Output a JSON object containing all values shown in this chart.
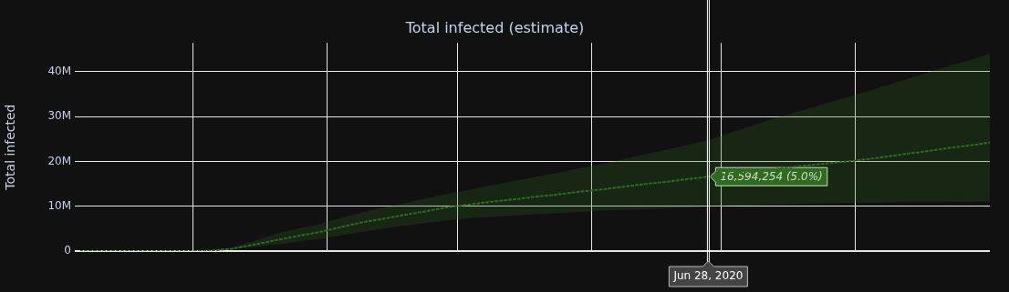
{
  "chart_data": {
    "type": "line",
    "title": "Total infected (estimate)",
    "ylabel": "Total infected",
    "categories": [
      null,
      null,
      null,
      null,
      null,
      null,
      null,
      null,
      null,
      null,
      null,
      null,
      null,
      null,
      null,
      null,
      null,
      null,
      null,
      null,
      null,
      null,
      null,
      null,
      null,
      null,
      null,
      null,
      null,
      null,
      null,
      null,
      null,
      null,
      null,
      null,
      null,
      null,
      null,
      null,
      null,
      null,
      null
    ],
    "series": [
      {
        "color": "#2e6b1e",
        "values": [
          0,
          0,
          0,
          0,
          0,
          0,
          100000,
          500000,
          1400000,
          2400000,
          3300000,
          4200000,
          5300000,
          6400000,
          7200000,
          8100000,
          8900000,
          9800000,
          10400000,
          11000000,
          11500000,
          12100000,
          12600000,
          13200000,
          13700000,
          14300000,
          14900000,
          15400000,
          16000000,
          16594254,
          17200000,
          17700000,
          18300000,
          18800000,
          19300000,
          19800000,
          20300000,
          20900000,
          21600000,
          22200000,
          22900000,
          23500000,
          24200000
        ],
        "lower": [
          0,
          0,
          0,
          0,
          0,
          0,
          50000,
          400000,
          900000,
          1400000,
          2100000,
          2700000,
          3500000,
          4300000,
          5000000,
          5700000,
          6300000,
          6900000,
          7400000,
          7600000,
          7900000,
          8200000,
          8400000,
          8700000,
          9000000,
          9200000,
          9300000,
          9500000,
          9700000,
          9900000,
          10100000,
          10200000,
          10400000,
          10500000,
          10600000,
          10700000,
          10800000,
          10800000,
          10900000,
          10900000,
          10900000,
          11000000,
          11000000
        ],
        "value_labels": [
          null,
          null,
          null,
          null,
          null,
          null,
          null,
          null,
          null,
          null,
          null,
          null,
          null,
          null,
          null,
          null,
          null,
          null,
          null,
          null,
          null,
          null,
          null,
          null,
          null,
          null,
          null,
          null,
          null,
          "16,594,254 (5.0%)",
          null,
          null,
          null,
          null,
          null,
          null,
          null,
          null,
          null,
          null,
          null,
          null,
          null
        ],
        "upper": [
          0,
          0,
          0,
          0,
          0,
          0,
          150000,
          800000,
          2200000,
          3800000,
          4900000,
          6000000,
          7300000,
          8600000,
          9700000,
          10700000,
          11800000,
          12800000,
          13700000,
          14700000,
          15600000,
          16500000,
          17400000,
          18400000,
          19300000,
          20400000,
          21500000,
          22500000,
          23600000,
          24700000,
          26300000,
          27900000,
          29500000,
          30900000,
          32300000,
          33700000,
          35100000,
          36600000,
          38100000,
          39600000,
          41100000,
          42500000,
          44000000
        ]
      }
    ],
    "ylim": [
      0,
      46400000
    ],
    "yticks": [
      {
        "value": 0,
        "label": "0"
      },
      {
        "value": 10000000,
        "label": "10M"
      },
      {
        "value": 20000000,
        "label": "20M"
      },
      {
        "value": 30000000,
        "label": "30M"
      },
      {
        "value": 40000000,
        "label": "40M"
      }
    ],
    "tick_labels": "y",
    "grid": true,
    "legend": false,
    "marker": "none",
    "line_style": "dotted",
    "annotations": [
      "Jun 28, 2020"
    ]
  }
}
